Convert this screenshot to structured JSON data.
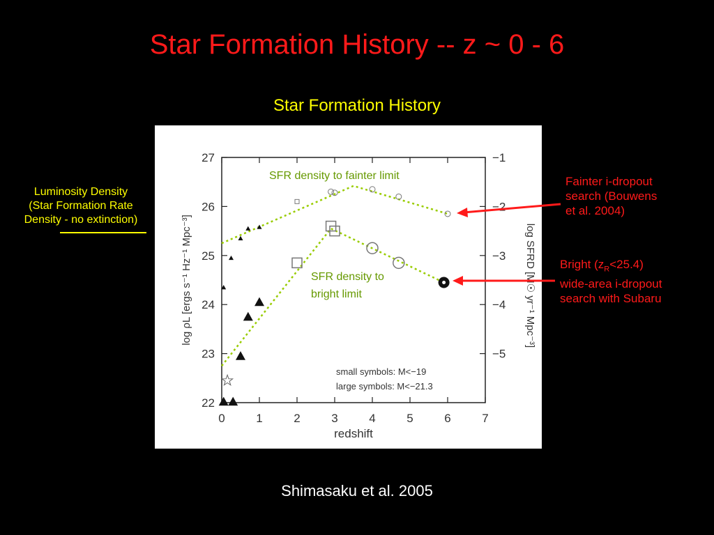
{
  "slide": {
    "title": "Star Formation History -- z ~ 0 - 6",
    "subtitle": "Star Formation History",
    "credit": "Shimasaku et al. 2005"
  },
  "annotations": {
    "left": [
      "Luminosity Density",
      "(Star Formation Rate",
      "Density - no extinction)"
    ],
    "right_top": [
      "Fainter i-dropout",
      "search (Bouwens",
      "et al. 2004)"
    ],
    "right_bottom": {
      "line1_prefix": "Bright (z",
      "line1_sub": "R",
      "line1_suffix": "<25.4)",
      "line2": "wide-area i-dropout",
      "line3": "search with Subaru"
    },
    "faint_label": "SFR density to fainter limit",
    "bright_label_lines": [
      "SFR density to",
      "bright limit"
    ]
  },
  "colors": {
    "background": "#000000",
    "title": "#ff1a1a",
    "subtitle": "#ffff00",
    "arrow": "#ff1a1a",
    "fit_line": "#99cc00",
    "fit_label": "#669900"
  },
  "chart_data": {
    "type": "scatter",
    "xlabel": "redshift",
    "ylabel": "log ρL [ergs s⁻¹ Hz⁻¹ Mpc⁻³]",
    "ylabel_right": "log SFRD [M☉ yr⁻¹ Mpc⁻³]",
    "xlim": [
      0,
      7
    ],
    "ylim": [
      22,
      27
    ],
    "ylim_right": [
      -6,
      -1
    ],
    "x_ticks": [
      "0",
      "1",
      "2",
      "3",
      "4",
      "5",
      "6",
      "7"
    ],
    "y_ticks": [
      "22",
      "23",
      "24",
      "25",
      "26",
      "27"
    ],
    "y_right_ticks": [
      "-1",
      "-2",
      "-3",
      "-4",
      "-5"
    ],
    "legend_lines": [
      "small symbols: M<−19",
      "large symbols: M<−21.3"
    ],
    "legend_position": "bottom-right",
    "series": [
      {
        "marker": "triangle-small",
        "x": [
          0.05,
          0.25,
          0.5,
          0.7,
          1.0
        ],
        "y": [
          24.35,
          24.95,
          25.35,
          25.55,
          25.58
        ]
      },
      {
        "marker": "square-small",
        "x": [
          2.0
        ],
        "y": [
          26.1
        ]
      },
      {
        "marker": "circle-small",
        "x": [
          2.9,
          3.0,
          4.0,
          4.7,
          6.0
        ],
        "y": [
          26.3,
          26.28,
          26.35,
          26.2,
          25.85
        ]
      },
      {
        "marker": "triangle-large",
        "x": [
          0.05,
          0.3,
          0.5,
          0.7,
          1.0
        ],
        "y": [
          22.02,
          22.02,
          22.95,
          23.75,
          24.05
        ]
      },
      {
        "marker": "star-large",
        "x": [
          0.15
        ],
        "y": [
          22.45
        ]
      },
      {
        "marker": "square-large",
        "x": [
          2.0,
          2.9,
          3.0
        ],
        "y": [
          24.85,
          25.6,
          25.5
        ]
      },
      {
        "marker": "circle-large",
        "x": [
          4.0,
          4.7
        ],
        "y": [
          25.15,
          24.85
        ]
      },
      {
        "marker": "filled-circle-large",
        "x": [
          5.9
        ],
        "y": [
          24.45
        ]
      }
    ],
    "fit_lines": [
      {
        "label": "SFR density to fainter limit",
        "x": [
          0.0,
          3.5,
          6.0
        ],
        "y": [
          25.25,
          26.42,
          25.85
        ]
      },
      {
        "label": "SFR density to bright limit",
        "x": [
          0.0,
          2.9,
          5.9
        ],
        "y": [
          22.75,
          25.55,
          24.45
        ]
      }
    ]
  }
}
